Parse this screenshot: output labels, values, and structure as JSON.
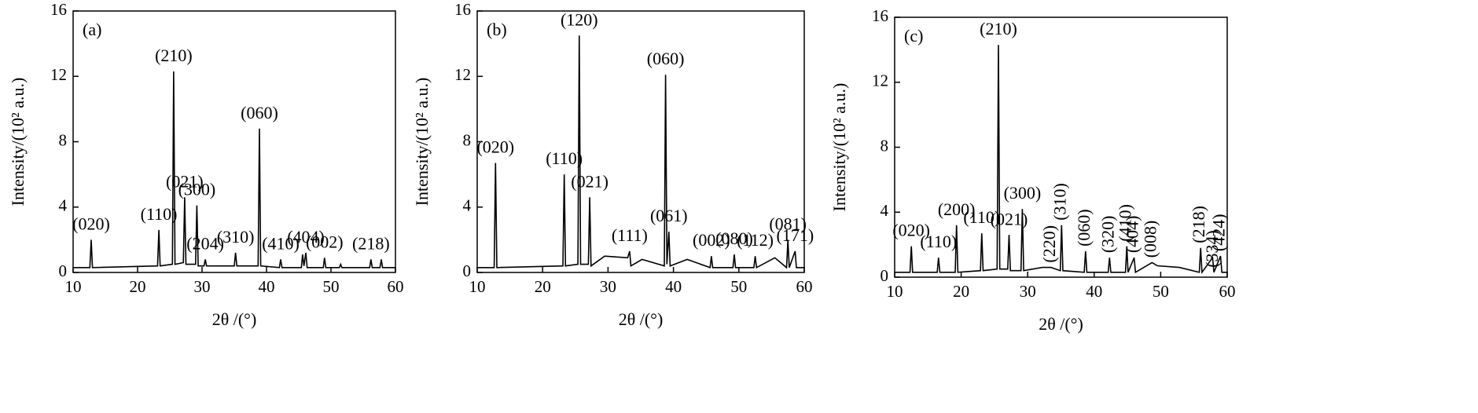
{
  "chart_data": [
    {
      "type": "line",
      "panel_label": "(a)",
      "x_label": "2θ /(°)",
      "y_label": "Intensity/(10² a.u.)",
      "color": "#000000",
      "xlim": [
        10,
        60
      ],
      "ylim": [
        0,
        16
      ],
      "xticks": [
        10,
        20,
        30,
        40,
        50,
        60
      ],
      "yticks": [
        0,
        4,
        8,
        12,
        16
      ],
      "x": [
        10,
        12.6,
        12.8,
        13.0,
        23.1,
        23.3,
        23.5,
        25.4,
        25.6,
        25.8,
        27.1,
        27.3,
        27.5,
        29.0,
        29.2,
        29.4,
        30.3,
        30.5,
        30.7,
        35.0,
        35.2,
        35.4,
        38.7,
        38.9,
        39.1,
        42.0,
        42.2,
        42.4,
        45.4,
        45.6,
        45.8,
        46.1,
        46.3,
        48.8,
        49.0,
        49.2,
        51.3,
        51.5,
        51.7,
        56.0,
        56.2,
        56.4,
        57.6,
        57.8,
        58.0,
        60
      ],
      "values": [
        0.3,
        0.3,
        2.0,
        0.3,
        0.4,
        2.6,
        0.4,
        0.5,
        12.3,
        0.5,
        0.6,
        4.6,
        0.5,
        0.5,
        4.1,
        0.4,
        0.4,
        0.8,
        0.4,
        0.4,
        1.2,
        0.4,
        0.4,
        8.8,
        0.4,
        0.3,
        0.8,
        0.3,
        0.3,
        1.1,
        0.4,
        1.2,
        0.3,
        0.3,
        0.9,
        0.3,
        0.3,
        0.5,
        0.3,
        0.3,
        0.8,
        0.3,
        0.3,
        0.8,
        0.3,
        0.3
      ],
      "annotations": [
        {
          "text": "(020)",
          "x": 12.8
        },
        {
          "text": "(110)",
          "x": 23.3
        },
        {
          "text": "(210)",
          "x": 25.6
        },
        {
          "text": "(021)",
          "x": 27.3
        },
        {
          "text": "(300)",
          "x": 29.2
        },
        {
          "text": "(204)",
          "x": 30.5
        },
        {
          "text": "(310)",
          "x": 35.2
        },
        {
          "text": "(060)",
          "x": 38.9
        },
        {
          "text": "(410)",
          "x": 42.2
        },
        {
          "text": "(404)",
          "x": 46.1
        },
        {
          "text": "(002)",
          "x": 49.0
        },
        {
          "text": "(218)",
          "x": 56.2
        }
      ]
    },
    {
      "type": "line",
      "panel_label": "(b)",
      "x_label": "2θ /(°)",
      "y_label": "Intensity/(10² a.u.)",
      "color": "#000000",
      "xlim": [
        10,
        60
      ],
      "ylim": [
        0,
        16
      ],
      "xticks": [
        10,
        20,
        30,
        40,
        50,
        60
      ],
      "yticks": [
        0,
        4,
        8,
        12,
        16
      ],
      "x": [
        10,
        12.6,
        12.8,
        13.0,
        23.1,
        23.3,
        23.5,
        25.4,
        25.6,
        25.8,
        27.0,
        27.2,
        27.4,
        29.5,
        33.0,
        33.3,
        33.5,
        35.2,
        38.6,
        38.8,
        39.0,
        39.3,
        39.5,
        42.1,
        45.6,
        45.8,
        46.0,
        49.1,
        49.3,
        49.5,
        52.3,
        52.5,
        52.7,
        55.5,
        57.3,
        57.5,
        57.7,
        58.6,
        58.8,
        60
      ],
      "values": [
        0.3,
        0.3,
        6.7,
        0.3,
        0.4,
        6.0,
        0.4,
        0.5,
        14.5,
        0.5,
        0.5,
        4.6,
        0.4,
        1.0,
        0.9,
        1.3,
        0.4,
        0.8,
        0.4,
        12.1,
        0.5,
        2.5,
        0.4,
        0.8,
        0.3,
        1.0,
        0.3,
        0.3,
        1.1,
        0.3,
        0.3,
        1.0,
        0.3,
        0.9,
        0.3,
        2.0,
        0.3,
        1.3,
        0.3,
        0.3
      ],
      "annotations": [
        {
          "text": "(020)",
          "x": 12.8
        },
        {
          "text": "(110)",
          "x": 23.3
        },
        {
          "text": "(120)",
          "x": 25.6
        },
        {
          "text": "(021)",
          "x": 27.2
        },
        {
          "text": "(111)",
          "x": 33.3
        },
        {
          "text": "(060)",
          "x": 38.8
        },
        {
          "text": "(061)",
          "x": 39.3
        },
        {
          "text": "(002)",
          "x": 45.8
        },
        {
          "text": "(080)",
          "x": 49.3
        },
        {
          "text": "(112)",
          "x": 52.5
        },
        {
          "text": "(081)",
          "x": 57.5
        },
        {
          "text": "(171)",
          "x": 58.6
        }
      ]
    },
    {
      "type": "line",
      "panel_label": "(c)",
      "x_label": "2θ /(°)",
      "y_label": "Intensity/(10² a.u.)",
      "color": "#000000",
      "xlim": [
        10,
        60
      ],
      "ylim": [
        0,
        16
      ],
      "xticks": [
        10,
        20,
        30,
        40,
        50,
        60
      ],
      "yticks": [
        0,
        4,
        8,
        12,
        16
      ],
      "x": [
        10,
        12.3,
        12.5,
        12.7,
        16.4,
        16.6,
        16.8,
        19.1,
        19.3,
        19.5,
        22.9,
        23.1,
        23.3,
        25.4,
        25.6,
        25.8,
        27.0,
        27.2,
        27.4,
        29.0,
        29.2,
        29.4,
        32.2,
        33.5,
        34.9,
        35.1,
        35.3,
        38.5,
        38.7,
        38.9,
        42.1,
        42.3,
        42.5,
        44.7,
        44.9,
        45.1,
        46.0,
        46.2,
        48.7,
        49.5,
        52.8,
        55.8,
        56.0,
        56.2,
        57.8,
        58.0,
        59.0,
        59.2,
        60
      ],
      "values": [
        0.3,
        0.3,
        1.9,
        0.3,
        0.3,
        1.2,
        0.3,
        0.3,
        3.2,
        0.3,
        0.4,
        2.7,
        0.4,
        0.5,
        14.3,
        0.5,
        0.5,
        2.6,
        0.4,
        0.4,
        4.2,
        0.4,
        0.6,
        0.6,
        0.4,
        3.2,
        0.4,
        0.3,
        1.6,
        0.3,
        0.3,
        1.2,
        0.3,
        0.3,
        1.9,
        0.3,
        1.2,
        0.3,
        0.9,
        0.7,
        0.6,
        0.3,
        1.8,
        0.3,
        1.2,
        0.3,
        1.3,
        0.3,
        0.3
      ],
      "annotations": [
        {
          "text": "(020)",
          "x": 12.5
        },
        {
          "text": "(110)",
          "x": 16.6
        },
        {
          "text": "(200)",
          "x": 19.3
        },
        {
          "text": "(110)",
          "x": 23.1
        },
        {
          "text": "(210)",
          "x": 25.6
        },
        {
          "text": "(021)",
          "x": 27.2
        },
        {
          "text": "(300)",
          "x": 29.2
        },
        {
          "text": "(220)",
          "x": 33.5,
          "rotated": true
        },
        {
          "text": "(310)",
          "x": 35.1,
          "rotated": true
        },
        {
          "text": "(060)",
          "x": 38.7,
          "rotated": true
        },
        {
          "text": "(320)",
          "x": 42.3,
          "rotated": true
        },
        {
          "text": "(410)",
          "x": 44.9,
          "rotated": true
        },
        {
          "text": "(404)",
          "x": 46.0,
          "rotated": true
        },
        {
          "text": "(008)",
          "x": 48.7,
          "rotated": true
        },
        {
          "text": "(218)",
          "x": 56.0,
          "rotated": true
        },
        {
          "text": "(334)",
          "x": 58.0,
          "rotated": true
        },
        {
          "text": "(424)",
          "x": 59.0,
          "rotated": true
        }
      ]
    }
  ]
}
